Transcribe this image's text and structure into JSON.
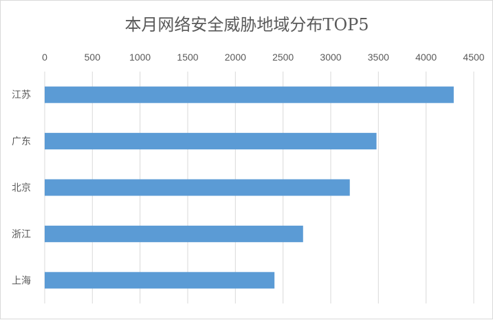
{
  "chart_data": {
    "type": "bar",
    "orientation": "horizontal",
    "title": "本月网络安全威胁地域分布TOP5",
    "categories": [
      "江苏",
      "广东",
      "北京",
      "浙江",
      "上海"
    ],
    "values": [
      4290,
      3480,
      3200,
      2710,
      2410
    ],
    "x_ticks": [
      "0",
      "500",
      "1000",
      "1500",
      "2000",
      "2500",
      "3000",
      "3500",
      "4000",
      "4500"
    ],
    "xlim": [
      0,
      4500
    ],
    "x_axis_position": "top",
    "grid": true,
    "legend": "none",
    "bar_color": "#5b9bd5"
  }
}
